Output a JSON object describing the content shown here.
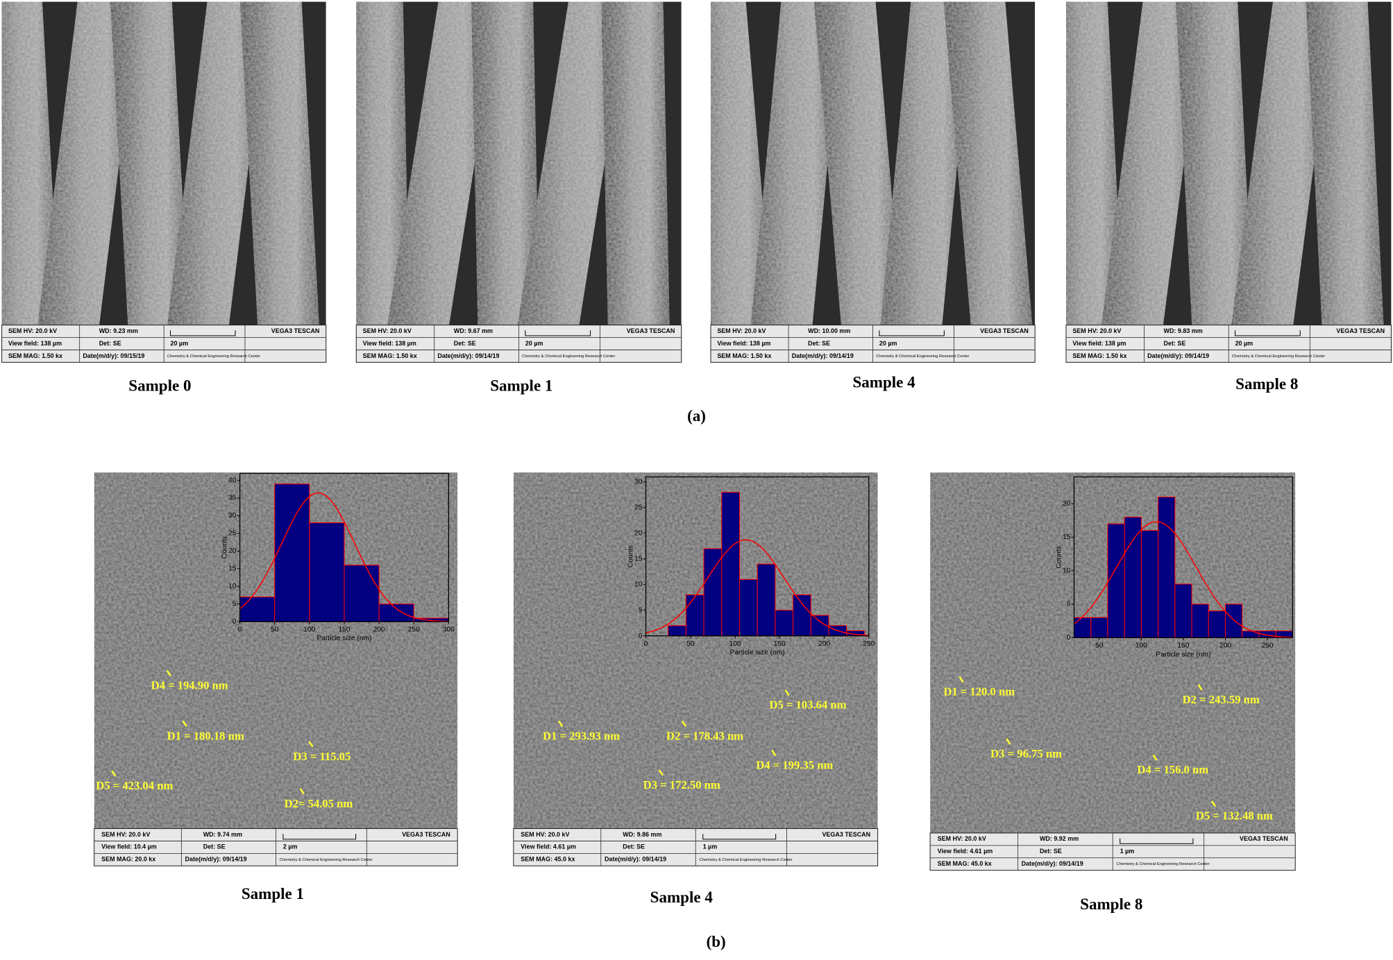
{
  "panel_a": {
    "label": "(a)",
    "images": [
      {
        "caption": "Sample 0",
        "info": {
          "hv": "SEM HV: 20.0 kV",
          "wd": "WD: 9.23 mm",
          "brand": "VEGA3 TESCAN",
          "view_field": "View field: 138 µm",
          "det": "Det: SE",
          "scale": "20 µm",
          "mag": "SEM MAG: 1.50 kx",
          "date": "Date(m/d/y): 09/15/19",
          "center": "Chemistry & Chemical Engineering Research Center"
        }
      },
      {
        "caption": "Sample 1",
        "info": {
          "hv": "SEM HV: 20.0 kV",
          "wd": "WD: 9.67 mm",
          "brand": "VEGA3 TESCAN",
          "view_field": "View field: 138 µm",
          "det": "Det: SE",
          "scale": "20 µm",
          "mag": "SEM MAG: 1.50 kx",
          "date": "Date(m/d/y): 09/14/19",
          "center": "Chemistry & Chemical Engineering Research Center"
        }
      },
      {
        "caption": "Sample 4",
        "info": {
          "hv": "SEM HV: 20.0 kV",
          "wd": "WD: 10.00 mm",
          "brand": "VEGA3 TESCAN",
          "view_field": "View field: 138 µm",
          "det": "Det: SE",
          "scale": "20 µm",
          "mag": "SEM MAG: 1.50 kx",
          "date": "Date(m/d/y): 09/14/19",
          "center": "Chemistry & Chemical Engineering Research Center"
        }
      },
      {
        "caption": "Sample 8",
        "info": {
          "hv": "SEM HV: 20.0 kV",
          "wd": "WD: 9.83 mm",
          "brand": "VEGA3 TESCAN",
          "view_field": "View field: 138 µm",
          "det": "Det: SE",
          "scale": "20 µm",
          "mag": "SEM MAG: 1.50 kx",
          "date": "Date(m/d/y): 09/14/19",
          "center": "Chemistry & Chemical Engineering Research Center"
        }
      }
    ]
  },
  "panel_b": {
    "label": "(b)",
    "images": [
      {
        "caption": "Sample 1",
        "info": {
          "hv": "SEM HV: 20.0 kV",
          "wd": "WD: 9.74 mm",
          "brand": "VEGA3 TESCAN",
          "view_field": "View field: 10.4 µm",
          "det": "Det: SE",
          "scale": "2 µm",
          "mag": "SEM MAG: 20.0 kx",
          "date": "Date(m/d/y): 09/14/19",
          "center": "Chemistry & Chemical Engineering Research Center"
        },
        "annotations": [
          "D4 = 194.90 nm",
          "D1 = 180.18 nm",
          "D3 = 115.05",
          "D5 = 423.04 nm",
          "D2= 54.05 nm"
        ],
        "histogram": {
          "x_label": "Particle size (nm)",
          "y_label": "Counts",
          "bins": [
            0,
            50,
            100,
            150,
            200,
            250,
            300
          ],
          "counts": [
            7,
            39,
            28,
            16,
            5,
            1
          ],
          "xlim": [
            0,
            300
          ],
          "ylim": [
            0,
            42
          ],
          "xticks": [
            0,
            50,
            100,
            150,
            200,
            250,
            300
          ],
          "yticks": [
            0,
            5,
            10,
            15,
            20,
            25,
            30,
            35,
            40
          ],
          "bar_color": "#000080",
          "edge_color": "#ff0000",
          "curve_color": "#ff0000"
        }
      },
      {
        "caption": "Sample 4",
        "info": {
          "hv": "SEM HV: 20.0 kV",
          "wd": "WD: 9.86 mm",
          "brand": "VEGA3 TESCAN",
          "view_field": "View field: 4.61 µm",
          "det": "Det: SE",
          "scale": "1 µm",
          "mag": "SEM MAG: 45.0 kx",
          "date": "Date(m/d/y): 09/14/19",
          "center": "Chemistry & Chemical Engineering Research Center"
        },
        "annotations": [
          "D5 = 103.64 nm",
          "D1 = 293.93 nm",
          "D2 = 178.43 nm",
          "D4 = 199.35 nm",
          "D3 = 172.50 nm"
        ],
        "histogram": {
          "x_label": "Particle size (nm)",
          "y_label": "Counts",
          "bins": [
            25,
            45,
            65,
            85,
            105,
            125,
            145,
            165,
            185,
            205,
            225,
            245
          ],
          "counts": [
            2,
            8,
            17,
            28,
            11,
            14,
            5,
            8,
            4,
            2,
            1
          ],
          "xlim": [
            0,
            250
          ],
          "ylim": [
            0,
            31
          ],
          "xticks": [
            0,
            50,
            100,
            150,
            200,
            250
          ],
          "yticks": [
            0,
            5,
            10,
            15,
            20,
            25,
            30
          ],
          "bar_color": "#000080",
          "edge_color": "#ff0000",
          "curve_color": "#ff0000"
        }
      },
      {
        "caption": "Sample 8",
        "info": {
          "hv": "SEM HV: 20.0 kV",
          "wd": "WD: 9.92 mm",
          "brand": "VEGA3 TESCAN",
          "view_field": "View field: 4.61 µm",
          "det": "Det: SE",
          "scale": "1 µm",
          "mag": "SEM MAG: 45.0 kx",
          "date": "Date(m/d/y): 09/14/19",
          "center": "Chemistry & Chemical Engineering Research Center"
        },
        "annotations": [
          "D1 = 120.0 nm",
          "D2 = 243.59 nm",
          "D3 = 96.75 nm",
          "D4 = 156.0 nm",
          "D5 = 132.48 nm"
        ],
        "histogram": {
          "x_label": "Particle size (nm)",
          "y_label": "Counts",
          "bins": [
            20,
            40,
            60,
            80,
            100,
            120,
            140,
            160,
            180,
            200,
            220,
            240,
            260,
            280
          ],
          "counts": [
            3,
            3,
            17,
            18,
            16,
            21,
            8,
            5,
            4,
            5,
            1,
            1,
            1
          ],
          "xlim": [
            20,
            280
          ],
          "ylim": [
            0,
            24
          ],
          "xticks": [
            50,
            100,
            150,
            200,
            250
          ],
          "yticks": [
            0,
            5,
            10,
            15,
            20
          ],
          "bar_color": "#000080",
          "edge_color": "#ff0000",
          "curve_color": "#ff0000"
        }
      }
    ]
  }
}
